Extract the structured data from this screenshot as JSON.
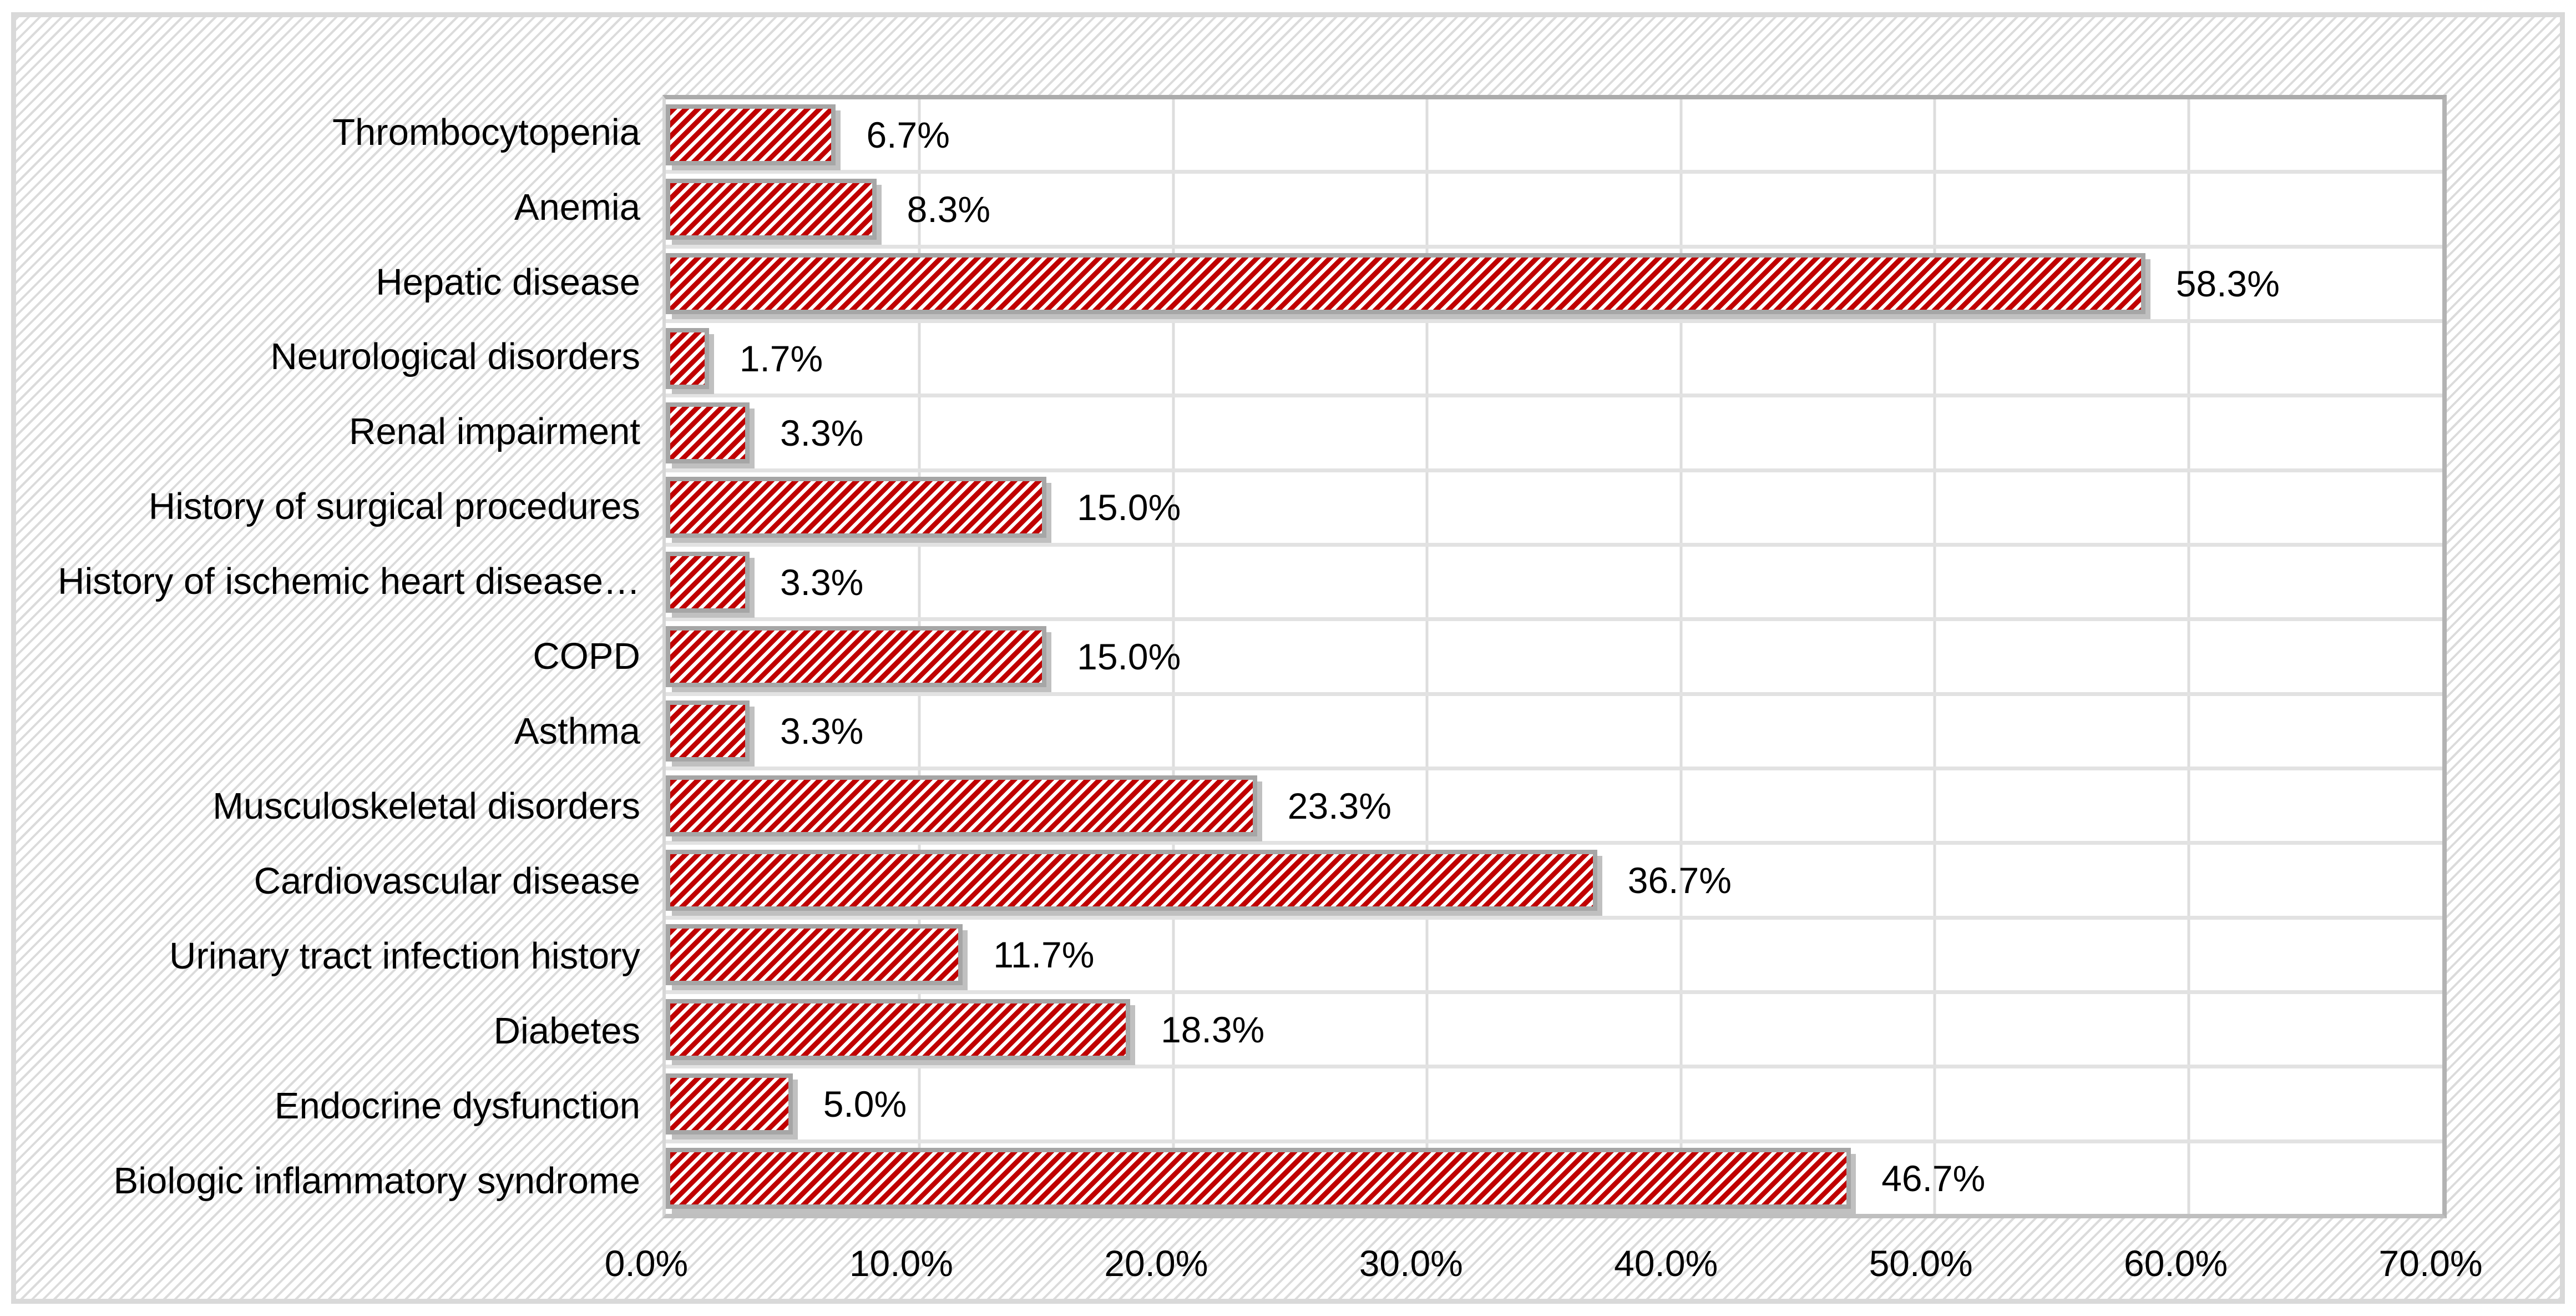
{
  "chart_data": {
    "type": "bar",
    "orientation": "horizontal",
    "title": "",
    "xlabel": "",
    "ylabel": "",
    "categories": [
      "Thrombocytopenia",
      "Anemia",
      "Hepatic disease",
      "Neurological disorders",
      "Renal impairment",
      "History of surgical procedures",
      "History of ischemic heart disease…",
      "COPD",
      "Asthma",
      "Musculoskeletal disorders",
      "Cardiovascular disease",
      "Urinary tract infection history",
      "Diabetes",
      "Endocrine dysfunction",
      "Biologic inflammatory syndrome"
    ],
    "values": [
      6.7,
      8.3,
      58.3,
      1.7,
      3.3,
      15.0,
      3.3,
      15.0,
      3.3,
      23.3,
      36.7,
      11.7,
      18.3,
      5.0,
      46.7
    ],
    "value_labels": [
      "6.7%",
      "8.3%",
      "58.3%",
      "1.7%",
      "3.3%",
      "15.0%",
      "3.3%",
      "15.0%",
      "3.3%",
      "23.3%",
      "36.7%",
      "11.7%",
      "18.3%",
      "5.0%",
      "46.7%"
    ],
    "x_tick_labels": [
      "0.0%",
      "10.0%",
      "20.0%",
      "30.0%",
      "40.0%",
      "50.0%",
      "60.0%",
      "70.0%"
    ],
    "xlim": [
      0,
      70
    ],
    "x_tick_step": 10,
    "grid": true,
    "legend": false,
    "bar_pattern": "diagonal-stripes",
    "background_pattern": "light-diagonal-hatch",
    "colors": {
      "bar_fill": "#C00000",
      "bar_pattern_bg": "#FFFFFF",
      "bar_border": "#A6A6A6",
      "bar_shadow": "#C0C0C0",
      "plot_border_top": "#ABABAB",
      "plot_border_right": "#B3B3B3",
      "plot_border_bottom": "#BFBFBF",
      "axis_line": "#D6D6D6",
      "gridline": "#DDDDDD",
      "row_separator": "#E2E2E2",
      "frame_border": "#D9D9D9",
      "bg_hatch": "#DBDBDB",
      "text": "#000000"
    }
  }
}
